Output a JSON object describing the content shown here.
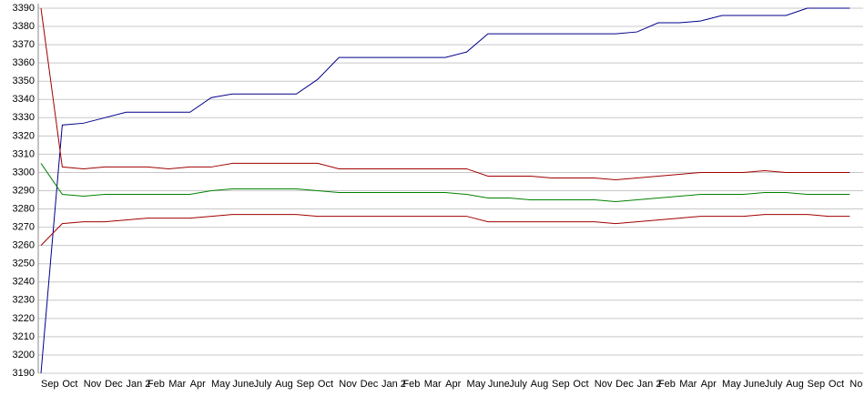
{
  "chart_data": {
    "type": "line",
    "categories": [
      "Sep",
      "Oct",
      "Nov",
      "Dec",
      "Jan 2",
      "Feb",
      "Mar",
      "Apr",
      "May",
      "June",
      "July",
      "Aug",
      "Sep",
      "Oct",
      "Nov",
      "Dec",
      "Jan 2",
      "Feb",
      "Mar",
      "Apr",
      "May",
      "June",
      "July",
      "Aug",
      "Sep",
      "Oct",
      "Nov",
      "Dec",
      "Jan 2",
      "Feb",
      "Mar",
      "Apr",
      "May",
      "June",
      "July",
      "Aug",
      "Sep",
      "Oct",
      "No"
    ],
    "series": [
      {
        "color": "#00008b",
        "values": [
          3190,
          3326,
          3327,
          3330,
          3333,
          3333,
          3333,
          3333,
          3341,
          3343,
          3343,
          3343,
          3343,
          3351,
          3363,
          3363,
          3363,
          3363,
          3363,
          3363,
          3366,
          3376,
          3376,
          3376,
          3376,
          3376,
          3376,
          3376,
          3377,
          3382,
          3382,
          3383,
          3386,
          3386,
          3386,
          3386,
          3390,
          3390,
          3390
        ]
      },
      {
        "color": "#a00000",
        "values": [
          3390,
          3303,
          3302,
          3303,
          3303,
          3303,
          3302,
          3303,
          3303,
          3305,
          3305,
          3305,
          3305,
          3305,
          3302,
          3302,
          3302,
          3302,
          3302,
          3302,
          3302,
          3298,
          3298,
          3298,
          3297,
          3297,
          3297,
          3296,
          3297,
          3298,
          3299,
          3300,
          3300,
          3300,
          3301,
          3300,
          3300,
          3300,
          3300
        ]
      },
      {
        "color": "#008000",
        "values": [
          3305,
          3288,
          3287,
          3288,
          3288,
          3288,
          3288,
          3288,
          3290,
          3291,
          3291,
          3291,
          3291,
          3290,
          3289,
          3289,
          3289,
          3289,
          3289,
          3289,
          3288,
          3286,
          3286,
          3285,
          3285,
          3285,
          3285,
          3284,
          3285,
          3286,
          3287,
          3288,
          3288,
          3288,
          3289,
          3289,
          3288,
          3288,
          3288
        ]
      },
      {
        "color": "#a00000",
        "values": [
          3260,
          3272,
          3273,
          3273,
          3274,
          3275,
          3275,
          3275,
          3276,
          3277,
          3277,
          3277,
          3277,
          3276,
          3276,
          3276,
          3276,
          3276,
          3276,
          3276,
          3276,
          3273,
          3273,
          3273,
          3273,
          3273,
          3273,
          3272,
          3273,
          3274,
          3275,
          3276,
          3276,
          3276,
          3277,
          3277,
          3277,
          3276,
          3276
        ]
      }
    ],
    "ylim": [
      3190,
      3390
    ],
    "yticks": [
      3190,
      3200,
      3210,
      3220,
      3230,
      3240,
      3250,
      3260,
      3270,
      3280,
      3290,
      3300,
      3310,
      3320,
      3330,
      3340,
      3350,
      3360,
      3370,
      3380,
      3390
    ],
    "grid": true
  }
}
